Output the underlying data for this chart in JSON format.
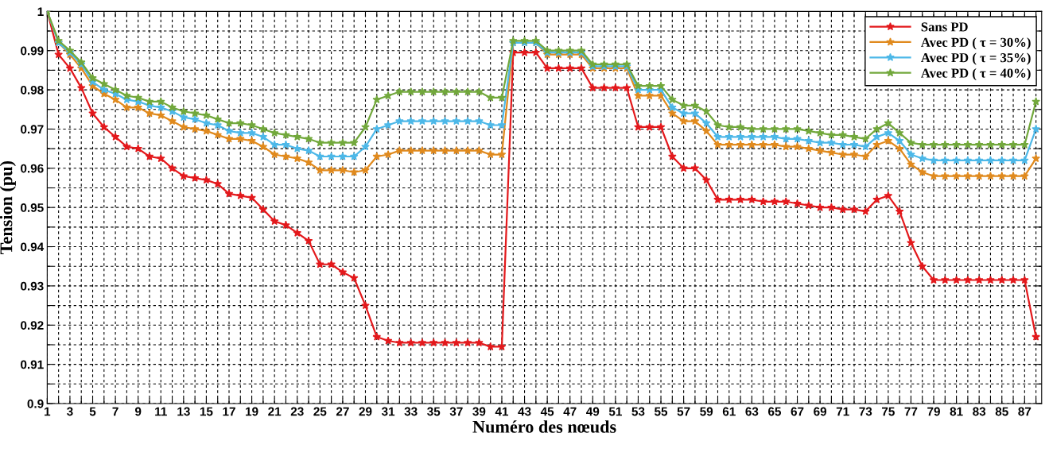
{
  "chart_data": {
    "type": "line",
    "xlabel": "Numéro des nœuds",
    "ylabel": "Tension (pu)",
    "x": [
      1,
      2,
      3,
      4,
      5,
      6,
      7,
      8,
      9,
      10,
      11,
      12,
      13,
      14,
      15,
      16,
      17,
      18,
      19,
      20,
      21,
      22,
      23,
      24,
      25,
      26,
      27,
      28,
      29,
      30,
      31,
      32,
      33,
      34,
      35,
      36,
      37,
      38,
      39,
      40,
      41,
      42,
      43,
      44,
      45,
      46,
      47,
      48,
      49,
      50,
      51,
      52,
      53,
      54,
      55,
      56,
      57,
      58,
      59,
      60,
      61,
      62,
      63,
      64,
      65,
      66,
      67,
      68,
      69,
      70,
      71,
      72,
      73,
      74,
      75,
      76,
      77,
      78,
      79,
      80,
      81,
      82,
      83,
      84,
      85,
      86,
      87,
      88
    ],
    "series": [
      {
        "name": "Sans PD",
        "color": "#e3191c",
        "values": [
          1.0,
          0.989,
          0.9855,
          0.9805,
          0.974,
          0.9705,
          0.968,
          0.9655,
          0.965,
          0.963,
          0.9625,
          0.96,
          0.958,
          0.9575,
          0.957,
          0.956,
          0.9535,
          0.953,
          0.9525,
          0.9495,
          0.9465,
          0.9455,
          0.9435,
          0.9415,
          0.9355,
          0.9355,
          0.9335,
          0.932,
          0.925,
          0.917,
          0.916,
          0.9155,
          0.9155,
          0.9155,
          0.9155,
          0.9155,
          0.9155,
          0.9155,
          0.9155,
          0.9145,
          0.9145,
          0.9895,
          0.9895,
          0.9895,
          0.9855,
          0.9855,
          0.9855,
          0.9855,
          0.9805,
          0.9805,
          0.9805,
          0.9805,
          0.9705,
          0.9705,
          0.9705,
          0.963,
          0.96,
          0.96,
          0.957,
          0.952,
          0.952,
          0.952,
          0.952,
          0.9515,
          0.9515,
          0.9515,
          0.951,
          0.9505,
          0.95,
          0.95,
          0.9495,
          0.9495,
          0.949,
          0.952,
          0.953,
          0.949,
          0.941,
          0.935,
          0.9315,
          0.9315,
          0.9315,
          0.9315,
          0.9315,
          0.9315,
          0.9315,
          0.9315,
          0.9315,
          0.917
        ]
      },
      {
        "name": "Avec PD ( τ = 30%)",
        "color": "#e08a1e",
        "values": [
          1.0,
          0.992,
          0.989,
          0.9855,
          0.981,
          0.979,
          0.9775,
          0.9755,
          0.9755,
          0.974,
          0.9735,
          0.972,
          0.9705,
          0.97,
          0.9695,
          0.9685,
          0.9675,
          0.9675,
          0.967,
          0.9655,
          0.9635,
          0.963,
          0.9625,
          0.9615,
          0.9595,
          0.9595,
          0.9595,
          0.959,
          0.9595,
          0.963,
          0.9635,
          0.9645,
          0.9645,
          0.9645,
          0.9645,
          0.9645,
          0.9645,
          0.9645,
          0.9645,
          0.9635,
          0.9635,
          0.992,
          0.992,
          0.992,
          0.989,
          0.989,
          0.989,
          0.989,
          0.9855,
          0.9855,
          0.9855,
          0.9855,
          0.9785,
          0.9785,
          0.9785,
          0.974,
          0.972,
          0.972,
          0.9695,
          0.966,
          0.966,
          0.966,
          0.966,
          0.966,
          0.966,
          0.9655,
          0.9655,
          0.965,
          0.9645,
          0.964,
          0.9635,
          0.9635,
          0.963,
          0.966,
          0.967,
          0.965,
          0.961,
          0.959,
          0.958,
          0.958,
          0.958,
          0.958,
          0.958,
          0.958,
          0.958,
          0.958,
          0.958,
          0.9625
        ]
      },
      {
        "name": "Avec PD ( τ = 35%)",
        "color": "#4db8e8",
        "values": [
          1.0,
          0.992,
          0.9895,
          0.9865,
          0.982,
          0.98,
          0.979,
          0.9775,
          0.977,
          0.976,
          0.9755,
          0.9745,
          0.973,
          0.9725,
          0.9715,
          0.971,
          0.9695,
          0.969,
          0.969,
          0.968,
          0.966,
          0.966,
          0.965,
          0.9645,
          0.963,
          0.963,
          0.963,
          0.963,
          0.9655,
          0.97,
          0.971,
          0.972,
          0.972,
          0.972,
          0.972,
          0.972,
          0.972,
          0.972,
          0.972,
          0.971,
          0.971,
          0.992,
          0.992,
          0.992,
          0.9895,
          0.9895,
          0.9895,
          0.9895,
          0.986,
          0.986,
          0.986,
          0.986,
          0.98,
          0.98,
          0.98,
          0.9755,
          0.974,
          0.974,
          0.9715,
          0.968,
          0.968,
          0.968,
          0.968,
          0.968,
          0.968,
          0.9675,
          0.9675,
          0.967,
          0.9665,
          0.9665,
          0.966,
          0.966,
          0.9655,
          0.968,
          0.969,
          0.967,
          0.9635,
          0.9625,
          0.962,
          0.962,
          0.962,
          0.962,
          0.962,
          0.962,
          0.962,
          0.962,
          0.962,
          0.97
        ]
      },
      {
        "name": "Avec PD ( τ = 40%)",
        "color": "#72a83c",
        "values": [
          1.0,
          0.9925,
          0.99,
          0.987,
          0.983,
          0.9815,
          0.98,
          0.9785,
          0.978,
          0.977,
          0.977,
          0.9755,
          0.9745,
          0.974,
          0.9735,
          0.9725,
          0.9715,
          0.9715,
          0.971,
          0.97,
          0.969,
          0.9685,
          0.968,
          0.9675,
          0.9665,
          0.9665,
          0.9665,
          0.9665,
          0.9705,
          0.9775,
          0.9785,
          0.9795,
          0.9795,
          0.9795,
          0.9795,
          0.9795,
          0.9795,
          0.9795,
          0.9795,
          0.978,
          0.978,
          0.9925,
          0.9925,
          0.9925,
          0.99,
          0.99,
          0.99,
          0.99,
          0.9865,
          0.9865,
          0.9865,
          0.9865,
          0.981,
          0.981,
          0.981,
          0.9775,
          0.976,
          0.976,
          0.9745,
          0.971,
          0.9705,
          0.9705,
          0.97,
          0.97,
          0.97,
          0.97,
          0.97,
          0.9695,
          0.969,
          0.9685,
          0.9685,
          0.968,
          0.9675,
          0.97,
          0.9715,
          0.969,
          0.9665,
          0.966,
          0.966,
          0.966,
          0.966,
          0.966,
          0.966,
          0.966,
          0.966,
          0.966,
          0.966,
          0.977
        ]
      }
    ],
    "xlim": [
      1,
      88.5
    ],
    "xticks": [
      1,
      {
        "value": 2,
        "label": null
      },
      3,
      {
        "value": 4,
        "label": null
      },
      5,
      {
        "value": 6,
        "label": null
      },
      7,
      {
        "value": 8,
        "label": null
      },
      9,
      {
        "value": 10,
        "label": null
      },
      11,
      {
        "value": 12,
        "label": null
      },
      13,
      {
        "value": 14,
        "label": null
      },
      15,
      {
        "value": 16,
        "label": null
      },
      17,
      {
        "value": 18,
        "label": null
      },
      19,
      {
        "value": 20,
        "label": null
      },
      21,
      {
        "value": 22,
        "label": null
      },
      23,
      {
        "value": 24,
        "label": null
      },
      25,
      {
        "value": 26,
        "label": null
      },
      27,
      {
        "value": 28,
        "label": null
      },
      29,
      {
        "value": 30,
        "label": null
      },
      31,
      {
        "value": 32,
        "label": null
      },
      33,
      {
        "value": 34,
        "label": null
      },
      35,
      {
        "value": 36,
        "label": null
      },
      37,
      {
        "value": 38,
        "label": null
      },
      39,
      {
        "value": 40,
        "label": null
      },
      41,
      {
        "value": 42,
        "label": null
      },
      43,
      {
        "value": 44,
        "label": null
      },
      45,
      {
        "value": 46,
        "label": null
      },
      47,
      {
        "value": 48,
        "label": null
      },
      49,
      {
        "value": 50,
        "label": null
      },
      51,
      {
        "value": 52,
        "label": null
      },
      53,
      {
        "value": 54,
        "label": null
      },
      55,
      {
        "value": 56,
        "label": null
      },
      57,
      {
        "value": 58,
        "label": null
      },
      59,
      {
        "value": 60,
        "label": null
      },
      61,
      {
        "value": 62,
        "label": null
      },
      63,
      {
        "value": 64,
        "label": null
      },
      65,
      {
        "value": 66,
        "label": null
      },
      67,
      {
        "value": 68,
        "label": null
      },
      69,
      {
        "value": 70,
        "label": null
      },
      71,
      {
        "value": 72,
        "label": null
      },
      73,
      {
        "value": 74,
        "label": null
      },
      75,
      {
        "value": 76,
        "label": null
      },
      77,
      {
        "value": 78,
        "label": null
      },
      79,
      {
        "value": 80,
        "label": null
      },
      81,
      {
        "value": 82,
        "label": null
      },
      83,
      {
        "value": 84,
        "label": null
      },
      85,
      {
        "value": 86,
        "label": null
      },
      87,
      {
        "value": 88,
        "label": null
      }
    ],
    "ylim": [
      0.9,
      1
    ],
    "yticks": [
      0.9,
      {
        "value": 0.905,
        "label": null
      },
      0.91,
      {
        "value": 0.915,
        "label": null
      },
      0.92,
      {
        "value": 0.925,
        "label": null
      },
      0.93,
      {
        "value": 0.935,
        "label": null
      },
      0.94,
      {
        "value": 0.945,
        "label": null
      },
      0.95,
      {
        "value": 0.955,
        "label": null
      },
      0.96,
      {
        "value": 0.965,
        "label": null
      },
      0.97,
      {
        "value": 0.975,
        "label": null
      },
      0.98,
      {
        "value": 0.985,
        "label": null
      },
      0.99,
      {
        "value": 0.995,
        "label": null
      },
      1
    ],
    "grid": true,
    "legend": "top right",
    "marker": "star",
    "line_style": "solid"
  }
}
